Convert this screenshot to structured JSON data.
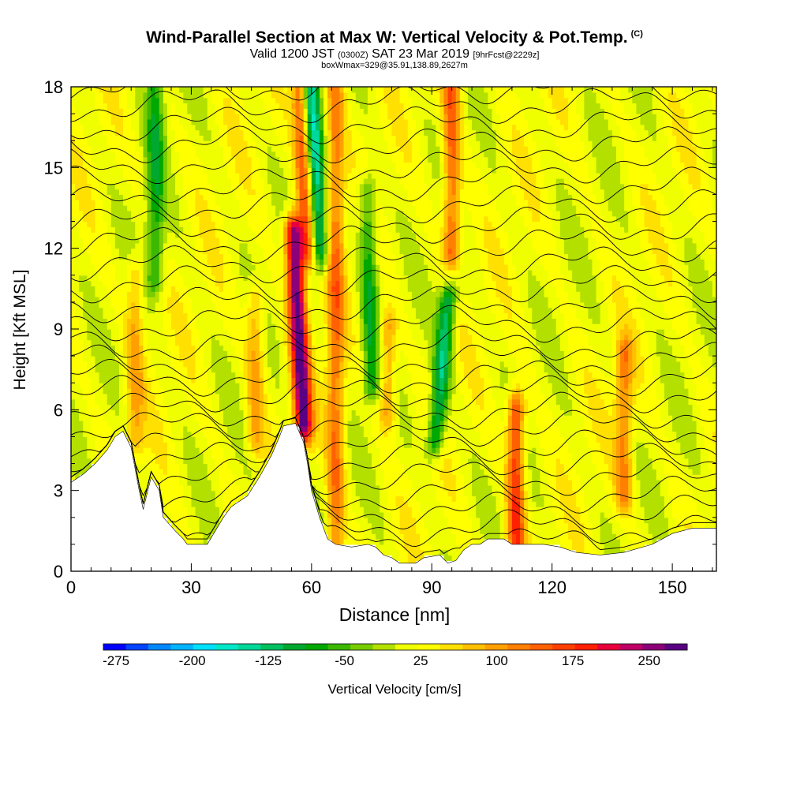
{
  "header": {
    "title": "Wind-Parallel Section at Max W: Vertical Velocity & Pot.Temp.",
    "copyright": "(C)",
    "valid_prefix": "Valid 1200 JST",
    "valid_utc": "(0300Z)",
    "valid_date": "SAT 23 Mar 2019",
    "forecast_info": "[9hrFcst@2229z]",
    "box_info": "boxWmax=329@35.91,138.89,2627m"
  },
  "chart_data": {
    "type": "heatmap",
    "title": "Wind-Parallel Section at Max W: Vertical Velocity & Pot.Temp.",
    "xlabel": "Distance [nm]",
    "ylabel": "Height [Kft MSL]",
    "xlim": [
      0,
      161
    ],
    "ylim": [
      0,
      18
    ],
    "x_ticks": [
      "0",
      "30",
      "60",
      "90",
      "120",
      "150"
    ],
    "y_ticks": [
      "0",
      "3",
      "6",
      "9",
      "12",
      "15",
      "18"
    ],
    "x_tick_values": [
      0,
      30,
      60,
      90,
      120,
      150
    ],
    "y_tick_values": [
      0,
      3,
      6,
      9,
      12,
      15,
      18
    ],
    "colorbar": {
      "label": "Vertical Velocity [cm/s]",
      "tick_labels": [
        "-275",
        "-200",
        "-125",
        "-50",
        "25",
        "100",
        "175",
        "250"
      ],
      "tick_values": [
        -275,
        -200,
        -125,
        -50,
        25,
        100,
        175,
        250
      ],
      "range": [
        -287.5,
        287.5
      ],
      "colors": [
        "#0000ff",
        "#0044ff",
        "#0088ff",
        "#00b4ff",
        "#00e0ff",
        "#00e8c8",
        "#00d89a",
        "#00c060",
        "#00a830",
        "#00a800",
        "#3cb800",
        "#78cc00",
        "#b4e000",
        "#f0ff00",
        "#ffff00",
        "#ffe000",
        "#ffc000",
        "#ffa000",
        "#ff8000",
        "#ff6000",
        "#ff4000",
        "#ff2000",
        "#e8003c",
        "#c00064",
        "#8c0078",
        "#5a0082"
      ]
    },
    "terrain_height_kft": [
      [
        0,
        3.3
      ],
      [
        3,
        3.6
      ],
      [
        6,
        4.0
      ],
      [
        9,
        4.5
      ],
      [
        11,
        5.0
      ],
      [
        13,
        5.2
      ],
      [
        15,
        4.6
      ],
      [
        17,
        3.0
      ],
      [
        18,
        2.3
      ],
      [
        20,
        3.5
      ],
      [
        22,
        3.0
      ],
      [
        23,
        2.0
      ],
      [
        26,
        1.5
      ],
      [
        28,
        1.2
      ],
      [
        29,
        1.0
      ],
      [
        34,
        1.0
      ],
      [
        36,
        1.5
      ],
      [
        38,
        2.0
      ],
      [
        40,
        2.4
      ],
      [
        44,
        2.8
      ],
      [
        47,
        3.5
      ],
      [
        50,
        4.3
      ],
      [
        52,
        5.0
      ],
      [
        53,
        5.4
      ],
      [
        56,
        5.5
      ],
      [
        58,
        4.8
      ],
      [
        59,
        4.0
      ],
      [
        60,
        3.0
      ],
      [
        62,
        2.0
      ],
      [
        64,
        1.2
      ],
      [
        66,
        1.0
      ],
      [
        70,
        0.9
      ],
      [
        74,
        1.0
      ],
      [
        76,
        0.9
      ],
      [
        78,
        0.6
      ],
      [
        80,
        0.5
      ],
      [
        82,
        0.3
      ],
      [
        86,
        0.3
      ],
      [
        88,
        0.5
      ],
      [
        92,
        0.6
      ],
      [
        94,
        0.3
      ],
      [
        96,
        0.4
      ],
      [
        98,
        0.8
      ],
      [
        100,
        1.0
      ],
      [
        102,
        1.0
      ],
      [
        104,
        1.2
      ],
      [
        108,
        1.2
      ],
      [
        110,
        1.0
      ],
      [
        114,
        1.0
      ],
      [
        118,
        1.0
      ],
      [
        122,
        0.9
      ],
      [
        126,
        0.7
      ],
      [
        132,
        0.6
      ],
      [
        138,
        0.7
      ],
      [
        145,
        1.0
      ],
      [
        150,
        1.4
      ],
      [
        155,
        1.6
      ],
      [
        161,
        1.6
      ]
    ],
    "w_features_cm_s": [
      {
        "x": 58,
        "z_bottom": 5.5,
        "z_top": 12.5,
        "w": 260,
        "tilt": -0.35
      },
      {
        "x": 59,
        "z_bottom": 12,
        "z_top": 18,
        "w": 150,
        "tilt": -0.3
      },
      {
        "x": 62,
        "z_bottom": 12,
        "z_top": 18,
        "w": -170,
        "tilt": -0.4
      },
      {
        "x": 66,
        "z_bottom": 1,
        "z_top": 18,
        "w": 110,
        "tilt": 0
      },
      {
        "x": 75,
        "z_bottom": 7,
        "z_top": 14,
        "w": -100,
        "tilt": -0.15
      },
      {
        "x": 79,
        "z_bottom": 6,
        "z_top": 9,
        "w": 90,
        "tilt": 0
      },
      {
        "x": 91,
        "z_bottom": 5,
        "z_top": 10,
        "w": -140,
        "tilt": 0.6
      },
      {
        "x": 95,
        "z_bottom": 12,
        "z_top": 18,
        "w": 130,
        "tilt": 0
      },
      {
        "x": 111,
        "z_bottom": 1,
        "z_top": 6,
        "w": 160,
        "tilt": 0
      },
      {
        "x": 138,
        "z_bottom": 3,
        "z_top": 8,
        "w": 100,
        "tilt": 0
      },
      {
        "x": 21,
        "z_bottom": 11,
        "z_top": 18,
        "w": -90,
        "tilt": 0
      },
      {
        "x": 16,
        "z_bottom": 5,
        "z_top": 11,
        "w": 70,
        "tilt": 0
      },
      {
        "x": 46,
        "z_bottom": 5,
        "z_top": 10,
        "w": 80,
        "tilt": 0
      }
    ],
    "isentropes_count": 28
  }
}
